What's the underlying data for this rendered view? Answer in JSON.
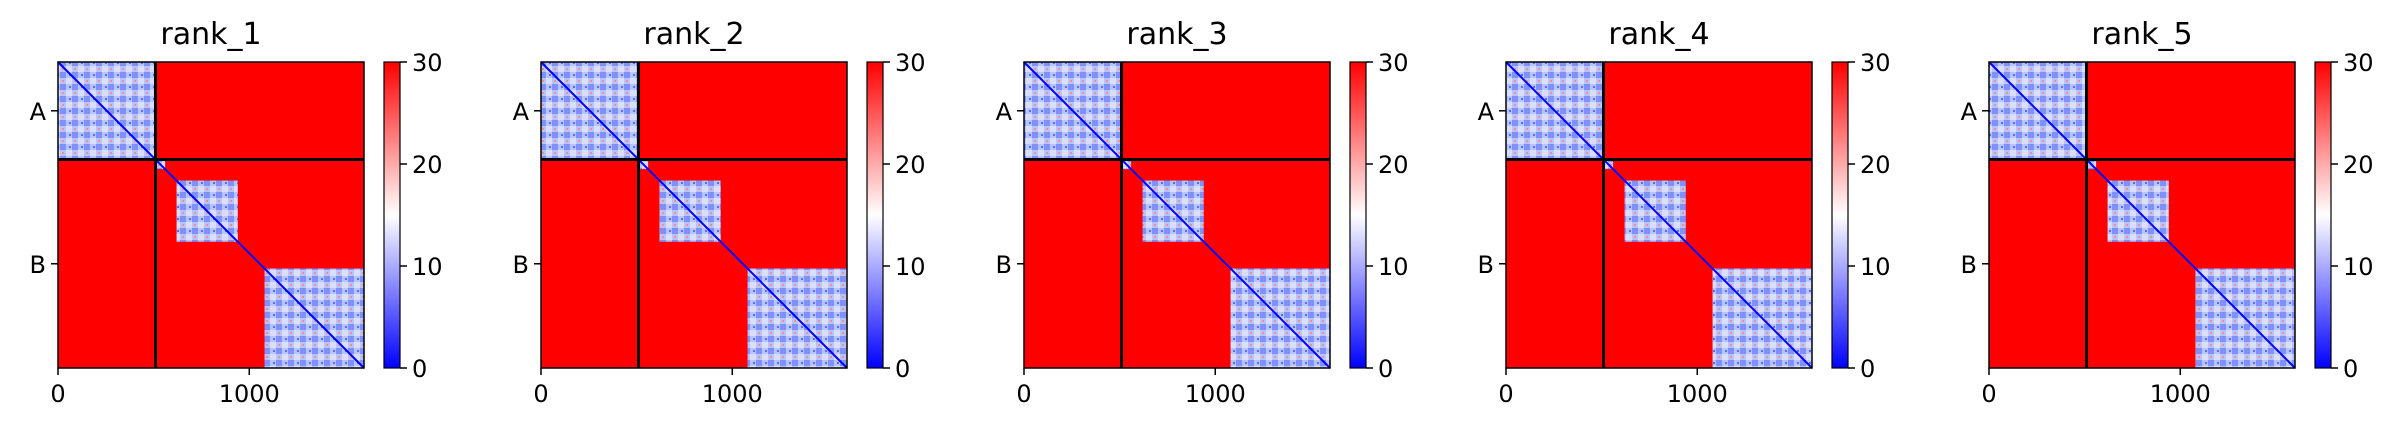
{
  "chart_data": [
    {
      "type": "heatmap",
      "title": "rank_1",
      "chains": [
        "A",
        "B"
      ],
      "chain_boundary": 510,
      "x_ticks": [
        0,
        1000
      ],
      "xlim": [
        0,
        1600
      ],
      "ylim": [
        1600,
        0
      ],
      "colorbar": {
        "min": 0,
        "max": 30,
        "ticks": [
          0,
          10,
          20,
          30
        ]
      },
      "low_error_blocks": [
        [
          0,
          510
        ],
        [
          515,
          560
        ],
        [
          620,
          940
        ],
        [
          1080,
          1600
        ]
      ]
    },
    {
      "type": "heatmap",
      "title": "rank_2",
      "chains": [
        "A",
        "B"
      ],
      "chain_boundary": 510,
      "x_ticks": [
        0,
        1000
      ],
      "xlim": [
        0,
        1600
      ],
      "ylim": [
        1600,
        0
      ],
      "colorbar": {
        "min": 0,
        "max": 30,
        "ticks": [
          0,
          10,
          20,
          30
        ]
      },
      "low_error_blocks": [
        [
          0,
          510
        ],
        [
          515,
          560
        ],
        [
          620,
          940
        ],
        [
          1080,
          1600
        ]
      ]
    },
    {
      "type": "heatmap",
      "title": "rank_3",
      "chains": [
        "A",
        "B"
      ],
      "chain_boundary": 510,
      "x_ticks": [
        0,
        1000
      ],
      "xlim": [
        0,
        1600
      ],
      "ylim": [
        1600,
        0
      ],
      "colorbar": {
        "min": 0,
        "max": 30,
        "ticks": [
          0,
          10,
          20,
          30
        ]
      },
      "low_error_blocks": [
        [
          0,
          510
        ],
        [
          515,
          560
        ],
        [
          620,
          940
        ],
        [
          1080,
          1600
        ]
      ]
    },
    {
      "type": "heatmap",
      "title": "rank_4",
      "chains": [
        "A",
        "B"
      ],
      "chain_boundary": 510,
      "x_ticks": [
        0,
        1000
      ],
      "xlim": [
        0,
        1600
      ],
      "ylim": [
        1600,
        0
      ],
      "colorbar": {
        "min": 0,
        "max": 30,
        "ticks": [
          0,
          10,
          20,
          30
        ]
      },
      "low_error_blocks": [
        [
          0,
          510
        ],
        [
          515,
          560
        ],
        [
          620,
          940
        ],
        [
          1080,
          1600
        ]
      ]
    },
    {
      "type": "heatmap",
      "title": "rank_5",
      "chains": [
        "A",
        "B"
      ],
      "chain_boundary": 510,
      "x_ticks": [
        0,
        1000
      ],
      "xlim": [
        0,
        1600
      ],
      "ylim": [
        1600,
        0
      ],
      "colorbar": {
        "min": 0,
        "max": 30,
        "ticks": [
          0,
          10,
          20,
          30
        ]
      },
      "low_error_blocks": [
        [
          0,
          510
        ],
        [
          515,
          560
        ],
        [
          620,
          940
        ],
        [
          1080,
          1600
        ]
      ]
    }
  ],
  "colors": {
    "low": "#0000ff",
    "mid": "#ffffff",
    "high": "#ff0000",
    "divider": "#000000"
  }
}
